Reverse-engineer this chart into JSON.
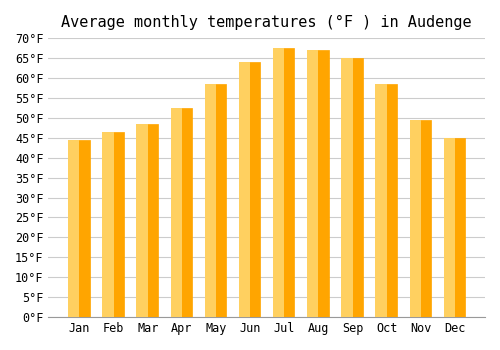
{
  "title": "Average monthly temperatures (°F ) in Audenge",
  "months": [
    "Jan",
    "Feb",
    "Mar",
    "Apr",
    "May",
    "Jun",
    "Jul",
    "Aug",
    "Sep",
    "Oct",
    "Nov",
    "Dec"
  ],
  "values": [
    44.5,
    46.5,
    48.5,
    52.5,
    58.5,
    64.0,
    67.5,
    67.0,
    65.0,
    58.5,
    49.5,
    45.0
  ],
  "bar_color_top": "#FFA500",
  "bar_color_bottom": "#FFD060",
  "ylim": [
    0,
    70
  ],
  "ytick_step": 5,
  "background_color": "#FFFFFF",
  "grid_color": "#CCCCCC",
  "title_fontsize": 11,
  "tick_fontsize": 8.5,
  "font_family": "monospace"
}
